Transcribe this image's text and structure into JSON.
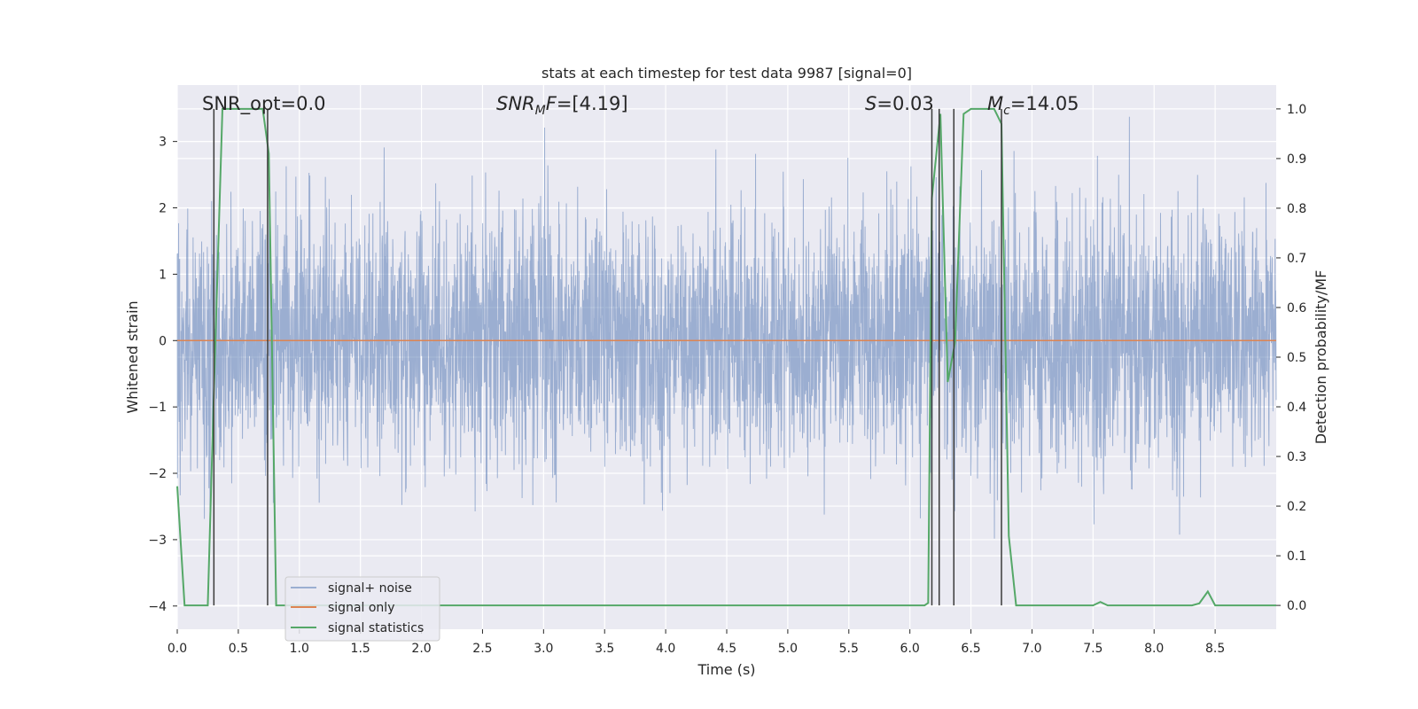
{
  "chart_data": {
    "type": "line",
    "title": "stats at each timestep for test data 9987 [signal=0]",
    "xlabel": "Time (s)",
    "ylabel_left": "Whitened strain",
    "ylabel_right": "Detection probability/MF",
    "xlim": [
      0.0,
      9.0
    ],
    "ylim_left": [
      -4.35,
      3.85
    ],
    "ylim_right": [
      -0.048,
      1.048
    ],
    "x_ticks": [
      0.0,
      0.5,
      1.0,
      1.5,
      2.0,
      2.5,
      3.0,
      3.5,
      4.0,
      4.5,
      5.0,
      5.5,
      6.0,
      6.5,
      7.0,
      7.5,
      8.0,
      8.5
    ],
    "x_tick_labels": [
      "0.0",
      "0.5",
      "1.0",
      "1.5",
      "2.0",
      "2.5",
      "3.0",
      "3.5",
      "4.0",
      "4.5",
      "5.0",
      "5.5",
      "6.0",
      "6.5",
      "7.0",
      "7.5",
      "8.0",
      "8.5"
    ],
    "yl_ticks": [
      -4,
      -3,
      -2,
      -1,
      0,
      1,
      2,
      3
    ],
    "yl_tick_labels": [
      "−4",
      "−3",
      "−2",
      "−1",
      "0",
      "1",
      "2",
      "3"
    ],
    "yr_ticks": [
      0.0,
      0.1,
      0.2,
      0.3,
      0.4,
      0.5,
      0.6,
      0.7,
      0.8,
      0.9,
      1.0
    ],
    "yr_tick_labels": [
      "0.0",
      "0.1",
      "0.2",
      "0.3",
      "0.4",
      "0.5",
      "0.6",
      "0.7",
      "0.8",
      "0.9",
      "1.0"
    ],
    "annotations": [
      {
        "id": "snr-opt",
        "text": "SNR_opt=0.0",
        "x": 0.2,
        "y": 3.5
      },
      {
        "id": "snr-mf",
        "text_main": "SNR",
        "text_sub": "M",
        "text_rest": "F=[4.19]",
        "x": 2.6,
        "y": 3.5
      },
      {
        "id": "s-stat",
        "text_italic": "S",
        "text_rest": "=0.03",
        "x": 5.6,
        "y": 3.5
      },
      {
        "id": "mc",
        "text_italic": "M",
        "text_sub": "c",
        "text_rest": "=14.05",
        "x": 6.6,
        "y": 3.5
      }
    ],
    "series": [
      {
        "name": "signal+ noise",
        "color": "#4c72b0",
        "alpha": 0.5,
        "kind": "noise",
        "n_points": 4096,
        "seed": 9987
      },
      {
        "name": "signal only",
        "color": "#dd8452",
        "kind": "line",
        "x": [
          0.0,
          9.0
        ],
        "y": [
          0.0,
          0.0
        ]
      },
      {
        "name": "signal statistics",
        "color": "#55a868",
        "kind": "line",
        "axis": "right",
        "x": [
          0.0,
          0.06,
          0.25,
          0.3,
          0.37,
          0.7,
          0.75,
          0.81,
          6.12,
          6.15,
          6.18,
          6.25,
          6.31,
          6.37,
          6.44,
          6.5,
          6.69,
          6.75,
          6.81,
          6.87,
          7.5,
          7.56,
          7.62,
          8.31,
          8.37,
          8.44,
          8.5,
          9.0
        ],
        "y": [
          0.24,
          0.0,
          0.0,
          0.43,
          1.0,
          1.0,
          0.91,
          0.0,
          0.0,
          0.005,
          0.82,
          0.99,
          0.45,
          0.53,
          0.99,
          1.0,
          1.0,
          0.97,
          0.14,
          0.0,
          0.0,
          0.007,
          0.0,
          0.0,
          0.004,
          0.028,
          0.0,
          0.0
        ]
      }
    ],
    "vlines": [
      0.3,
      0.74,
      6.18,
      6.24,
      6.36,
      6.75
    ],
    "legend": {
      "placement": "bottom-left",
      "entries": [
        "signal+ noise",
        "signal only",
        "signal statistics"
      ]
    },
    "grid": true
  }
}
